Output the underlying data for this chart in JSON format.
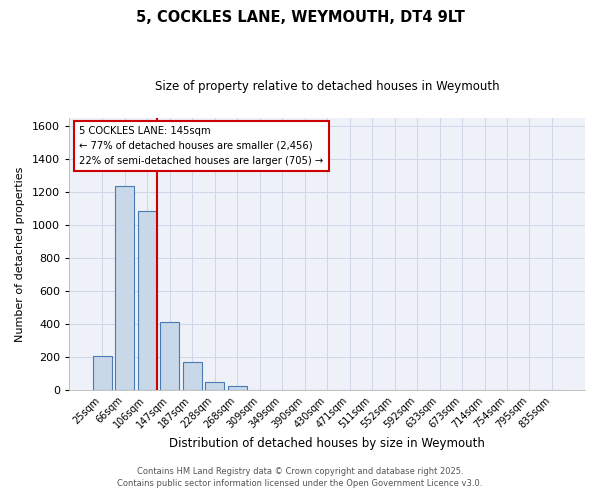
{
  "title": "5, COCKLES LANE, WEYMOUTH, DT4 9LT",
  "subtitle": "Size of property relative to detached houses in Weymouth",
  "xlabel": "Distribution of detached houses by size in Weymouth",
  "ylabel": "Number of detached properties",
  "bar_labels": [
    "25sqm",
    "66sqm",
    "106sqm",
    "147sqm",
    "187sqm",
    "228sqm",
    "268sqm",
    "309sqm",
    "349sqm",
    "390sqm",
    "430sqm",
    "471sqm",
    "511sqm",
    "552sqm",
    "592sqm",
    "633sqm",
    "673sqm",
    "714sqm",
    "754sqm",
    "795sqm",
    "835sqm"
  ],
  "bar_values": [
    205,
    1235,
    1085,
    415,
    170,
    50,
    25,
    0,
    0,
    0,
    0,
    0,
    0,
    0,
    0,
    0,
    0,
    0,
    0,
    0,
    0
  ],
  "bar_color": "#c8d8e8",
  "bar_edgecolor": "#4a7ab5",
  "ylim": [
    0,
    1650
  ],
  "yticks": [
    0,
    200,
    400,
    600,
    800,
    1000,
    1200,
    1400,
    1600
  ],
  "marker_index": 2,
  "marker_color": "#cc0000",
  "annotation_title": "5 COCKLES LANE: 145sqm",
  "annotation_line1": "← 77% of detached houses are smaller (2,456)",
  "annotation_line2": "22% of semi-detached houses are larger (705) →",
  "annotation_box_edgecolor": "#cc0000",
  "footer_line1": "Contains HM Land Registry data © Crown copyright and database right 2025.",
  "footer_line2": "Contains public sector information licensed under the Open Government Licence v3.0.",
  "background_color": "#eef2f8",
  "grid_color": "#cdd6e8"
}
